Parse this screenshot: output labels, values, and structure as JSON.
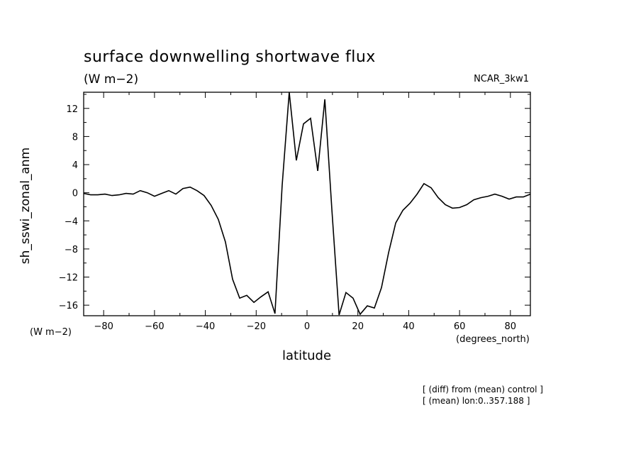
{
  "title": "surface downwelling shortwave flux",
  "units_label": "(W m−2)",
  "dataset": "NCAR_3kw1",
  "y_units_label": "(W m−2)",
  "x_units_label": "(degrees_north)",
  "notes": [
    "[ (diff) from (mean) control ]",
    "[ (mean) lon:0..357.188 ]"
  ],
  "chart_data": {
    "type": "line",
    "title": "surface downwelling shortwave flux",
    "xlabel": "latitude",
    "ylabel": "sh_sswi_zonal_anm",
    "xlim": [
      -87.86,
      87.86
    ],
    "ylim": [
      -17.5,
      14.3
    ],
    "xticks": [
      -80,
      -60,
      -40,
      -20,
      0,
      20,
      40,
      60,
      80
    ],
    "yticks": [
      -16,
      -12,
      -8,
      -4,
      0,
      4,
      8,
      12
    ],
    "xticklabels": [
      "−80",
      "−60",
      "−40",
      "−20",
      "0",
      "20",
      "40",
      "60",
      "80"
    ],
    "yticklabels": [
      "−16",
      "−12",
      "−8",
      "−4",
      "0",
      "4",
      "8",
      "12"
    ],
    "grid": false,
    "series": [
      {
        "x": [
          -87.9,
          -85.1,
          -82.3,
          -79.5,
          -76.7,
          -73.9,
          -71.2,
          -68.4,
          -65.6,
          -62.8,
          -60.0,
          -57.2,
          -54.4,
          -51.6,
          -48.8,
          -46.0,
          -43.3,
          -40.5,
          -37.7,
          -34.9,
          -32.1,
          -29.3,
          -26.5,
          -23.7,
          -20.9,
          -18.1,
          -15.3,
          -12.6,
          -9.8,
          -7.0,
          -4.2,
          -1.4,
          1.4,
          4.2,
          7.0,
          9.8,
          12.6,
          15.3,
          18.1,
          20.9,
          23.7,
          26.5,
          29.3,
          32.1,
          34.9,
          37.7,
          40.5,
          43.3,
          46.0,
          48.8,
          51.6,
          54.4,
          57.2,
          60.0,
          62.8,
          65.6,
          68.4,
          71.2,
          73.9,
          76.7,
          79.5,
          82.3,
          85.1,
          87.9
        ],
        "y": [
          -0.1,
          -0.3,
          -0.3,
          -0.2,
          -0.4,
          -0.3,
          -0.1,
          -0.2,
          0.3,
          0.0,
          -0.5,
          -0.1,
          0.3,
          -0.2,
          0.6,
          0.8,
          0.3,
          -0.4,
          -1.8,
          -3.8,
          -7.0,
          -12.3,
          -15.0,
          -14.6,
          -15.6,
          -14.8,
          -14.1,
          -17.2,
          1.0,
          14.5,
          4.6,
          9.8,
          10.6,
          3.1,
          13.3,
          -2.5,
          -17.4,
          -14.2,
          -15.0,
          -17.3,
          -16.1,
          -16.4,
          -13.5,
          -8.5,
          -4.3,
          -2.5,
          -1.5,
          -0.2,
          1.3,
          0.7,
          -0.7,
          -1.7,
          -2.2,
          -2.1,
          -1.7,
          -1.0,
          -0.7,
          -0.5,
          -0.2,
          -0.5,
          -0.9,
          -0.6,
          -0.6,
          -0.2
        ]
      }
    ]
  }
}
